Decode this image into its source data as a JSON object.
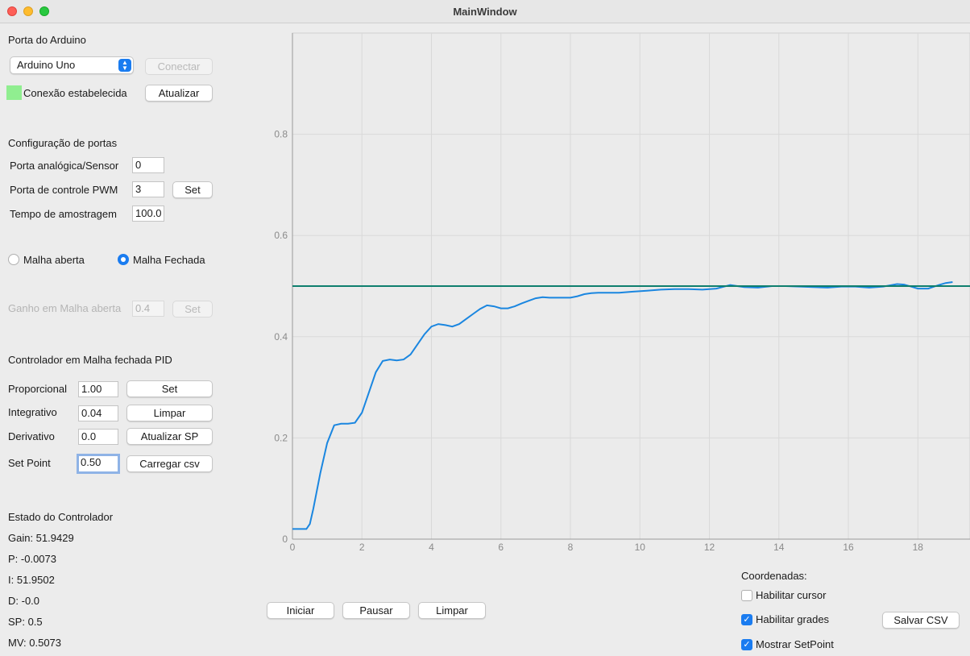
{
  "window": {
    "title": "MainWindow"
  },
  "arduino": {
    "section_label": "Porta do Arduino",
    "port_select": "Arduino Uno",
    "connect_button": "Conectar",
    "status_text": "Conexão estabelecida",
    "status_color": "#90ee90",
    "refresh_button": "Atualizar"
  },
  "ports": {
    "section_label": "Configuração de portas",
    "analog_label": "Porta analógica/Sensor",
    "analog_value": "0",
    "pwm_label": "Porta de controle PWM",
    "pwm_value": "3",
    "pwm_set_button": "Set",
    "sample_label": "Tempo de amostragem",
    "sample_value": "100.0"
  },
  "mode": {
    "open_loop_label": "Malha aberta",
    "closed_loop_label": "Malha Fechada",
    "selected": "Malha Fechada",
    "open_gain_label": "Ganho em Malha aberta",
    "open_gain_value": "0.4",
    "open_gain_set_button": "Set"
  },
  "pid": {
    "section_label": "Controlador em Malha fechada PID",
    "proportional_label": "Proporcional",
    "proportional_value": "1.00",
    "set_button": "Set",
    "integral_label": "Integrativo",
    "integral_value": "0.04",
    "clear_button": "Limpar",
    "derivative_label": "Derivativo",
    "derivative_value": "0.0",
    "update_sp_button": "Atualizar SP",
    "setpoint_label": "Set Point",
    "setpoint_value": "0.50",
    "load_csv_button": "Carregar csv"
  },
  "state": {
    "section_label": "Estado do Controlador",
    "gain": "Gain: 51.9429",
    "p": "P: -0.0073",
    "i": "I: 51.9502",
    "d": "D: -0.0",
    "sp": "SP: 0.5",
    "mv": "MV: 0.5073"
  },
  "controls": {
    "start_button": "Iniciar",
    "pause_button": "Pausar",
    "clear_button": "Limpar"
  },
  "coords": {
    "section_label": "Coordenadas:",
    "cursor_label": "Habilitar cursor",
    "cursor_checked": false,
    "grid_label": "Habilitar grades",
    "grid_checked": true,
    "setpoint_label": "Mostrar SetPoint",
    "setpoint_checked": true,
    "save_csv_button": "Salvar CSV"
  },
  "chart_data": {
    "type": "line",
    "xlim": [
      0,
      19.5
    ],
    "ylim": [
      0,
      1.0
    ],
    "x_ticks": [
      0,
      2,
      4,
      6,
      8,
      10,
      12,
      14,
      16,
      18
    ],
    "y_ticks": [
      0,
      0.2,
      0.4,
      0.6,
      0.8
    ],
    "x_tick_labels": [
      "0",
      "2",
      "4",
      "6",
      "8",
      "10",
      "12",
      "14",
      "16",
      "18"
    ],
    "y_tick_labels": [
      "0",
      "0.2",
      "0.4",
      "0.6",
      "0.8"
    ],
    "grid": true,
    "series": [
      {
        "color": "#1a86e0",
        "x": [
          0,
          0.4,
          0.5,
          0.6,
          0.8,
          1.0,
          1.2,
          1.4,
          1.6,
          1.8,
          2.0,
          2.2,
          2.4,
          2.6,
          2.8,
          3.0,
          3.2,
          3.4,
          3.6,
          3.8,
          4.0,
          4.2,
          4.4,
          4.6,
          4.8,
          5.0,
          5.2,
          5.4,
          5.6,
          5.8,
          6.0,
          6.2,
          6.4,
          6.6,
          6.8,
          7.0,
          7.2,
          7.4,
          7.6,
          7.8,
          8.0,
          8.2,
          8.4,
          8.6,
          8.8,
          9.0,
          9.4,
          9.8,
          10.2,
          10.6,
          11.0,
          11.4,
          11.8,
          12.2,
          12.6,
          13.0,
          13.4,
          13.8,
          14.2,
          14.6,
          15.0,
          15.4,
          15.8,
          16.2,
          16.6,
          17.0,
          17.4,
          17.6,
          17.8,
          18.0,
          18.3,
          18.6,
          18.8,
          19.0
        ],
        "y": [
          0.02,
          0.02,
          0.03,
          0.06,
          0.13,
          0.19,
          0.225,
          0.228,
          0.228,
          0.23,
          0.25,
          0.29,
          0.33,
          0.352,
          0.355,
          0.353,
          0.355,
          0.365,
          0.385,
          0.405,
          0.42,
          0.425,
          0.423,
          0.42,
          0.425,
          0.435,
          0.445,
          0.455,
          0.462,
          0.46,
          0.456,
          0.456,
          0.46,
          0.466,
          0.471,
          0.476,
          0.478,
          0.477,
          0.477,
          0.477,
          0.477,
          0.48,
          0.484,
          0.486,
          0.487,
          0.487,
          0.487,
          0.489,
          0.491,
          0.493,
          0.494,
          0.494,
          0.493,
          0.495,
          0.502,
          0.498,
          0.497,
          0.5,
          0.5,
          0.499,
          0.498,
          0.497,
          0.499,
          0.499,
          0.497,
          0.499,
          0.504,
          0.503,
          0.499,
          0.495,
          0.495,
          0.502,
          0.506,
          0.508
        ]
      },
      {
        "color": "#0f7f6e",
        "x": [
          0,
          19.5
        ],
        "y": [
          0.5,
          0.5
        ]
      }
    ]
  }
}
